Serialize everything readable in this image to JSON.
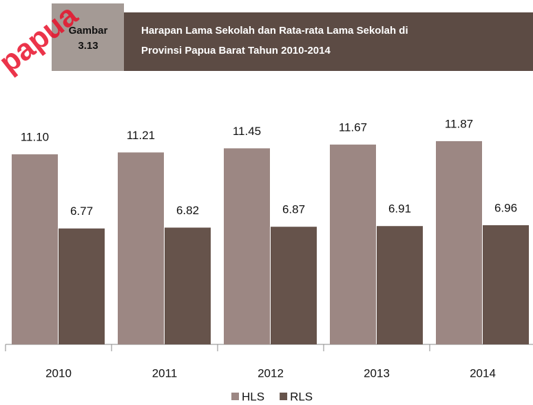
{
  "chart_data": {
    "type": "bar",
    "badge": [
      "Gambar",
      "3.13"
    ],
    "title_lines": [
      "Harapan Lama Sekolah dan Rata-rata Lama Sekolah di",
      "Provinsi Papua Barat Tahun 2010-2014"
    ],
    "watermark": "papua",
    "categories": [
      "2010",
      "2011",
      "2012",
      "2013",
      "2014"
    ],
    "series": [
      {
        "name": "HLS",
        "color": "#9c8783",
        "values": [
          11.1,
          11.21,
          11.45,
          11.67,
          11.87
        ],
        "value_labels": [
          "11.10",
          "11.21",
          "11.45",
          "11.67",
          "11.87"
        ]
      },
      {
        "name": "RLS",
        "color": "#66534b",
        "values": [
          6.77,
          6.82,
          6.87,
          6.91,
          6.96
        ],
        "value_labels": [
          "6.77",
          "6.82",
          "6.87",
          "6.91",
          "6.96"
        ]
      }
    ],
    "legend": "bottom"
  }
}
